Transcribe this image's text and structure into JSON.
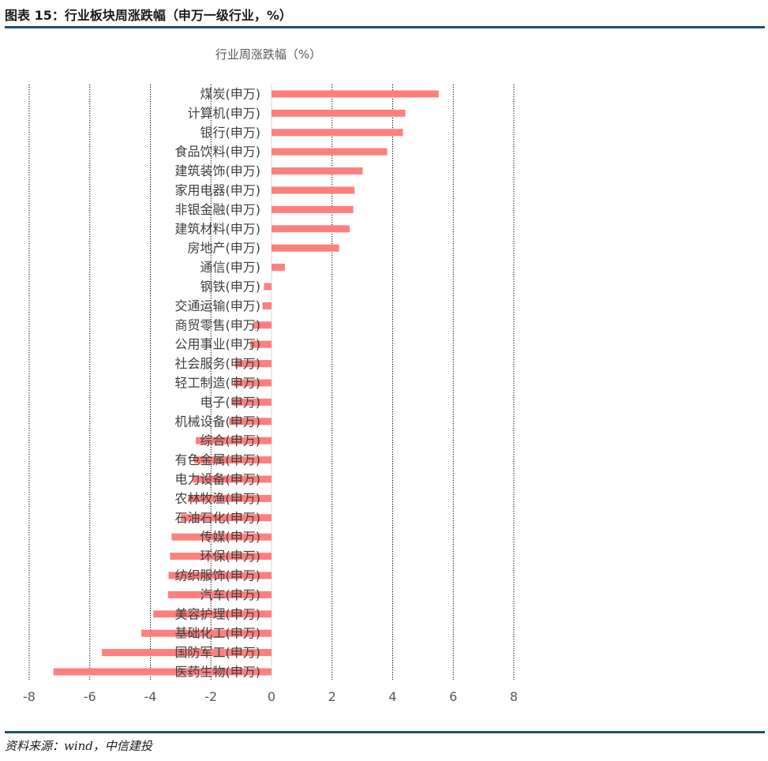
{
  "header": {
    "title": "图表 15：行业板块周涨跌幅（申万一级行业，%）"
  },
  "footer": {
    "source": "资料来源：wind，中信建投"
  },
  "colors": {
    "bar": "#ff7f7f",
    "rule": "#1f4e79",
    "gridline": "#000000"
  },
  "chart_data": {
    "type": "bar",
    "orientation": "horizontal",
    "title": "行业周涨跌幅（%）",
    "xlim": [
      -8,
      8
    ],
    "x_ticks": [
      -8,
      -6,
      -4,
      -2,
      0,
      2,
      4,
      6,
      8
    ],
    "grid": "vertical-dotted",
    "categories": [
      "煤炭(申万)",
      "计算机(申万)",
      "银行(申万)",
      "食品饮料(申万)",
      "建筑装饰(申万)",
      "家用电器(申万)",
      "非银金融(申万)",
      "建筑材料(申万)",
      "房地产(申万)",
      "通信(申万)",
      "钢铁(申万)",
      "交通运输(申万)",
      "商贸零售(申万)",
      "公用事业(申万)",
      "社会服务(申万)",
      "轻工制造(申万)",
      "电子(申万)",
      "机械设备(申万)",
      "综合(申万)",
      "有色金属(申万)",
      "电力设备(申万)",
      "农林牧渔(申万)",
      "石油石化(申万)",
      "传媒(申万)",
      "环保(申万)",
      "纺织服饰(申万)",
      "汽车(申万)",
      "美容护理(申万)",
      "基础化工(申万)",
      "国防军工(申万)",
      "医药生物(申万)"
    ],
    "values": [
      5.52,
      4.42,
      4.34,
      3.82,
      3.01,
      2.74,
      2.7,
      2.58,
      2.23,
      0.44,
      -0.25,
      -0.3,
      -0.6,
      -0.7,
      -1.2,
      -1.25,
      -1.28,
      -1.4,
      -2.5,
      -2.55,
      -2.6,
      -2.75,
      -3.0,
      -3.3,
      -3.35,
      -3.4,
      -3.42,
      -3.9,
      -4.3,
      -5.6,
      -7.2
    ]
  }
}
